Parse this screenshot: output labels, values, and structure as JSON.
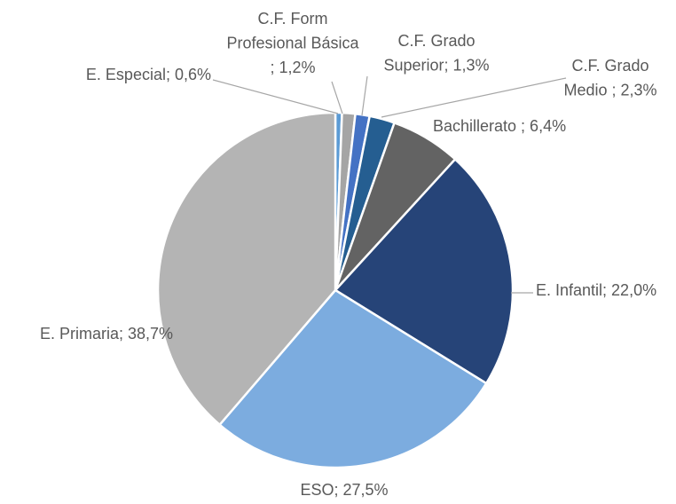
{
  "chart_data": {
    "type": "pie",
    "labels": [
      [
        "E. Especial; 0,6%"
      ],
      [
        "C.F. Form",
        "Profesional Básica",
        "; 1,2%"
      ],
      [
        "C.F. Grado",
        "Superior; 1,3%"
      ],
      [
        "C.F. Grado",
        "Medio ; 2,3%"
      ],
      [
        "Bachillerato ; 6,4%"
      ],
      [
        "E. Infantil; 22,0%"
      ],
      [
        "ESO; 27,5%"
      ],
      [
        "E. Primaria; 38,7%"
      ]
    ],
    "values": [
      0.6,
      1.2,
      1.3,
      2.3,
      6.4,
      22.0,
      27.5,
      38.7
    ],
    "colors": [
      "#5b9bd5",
      "#a5a5a5",
      "#4472c4",
      "#255e91",
      "#636363",
      "#264478",
      "#7cacdf",
      "#b4b4b4"
    ],
    "start_angle": 0,
    "direction": "clockwise"
  }
}
